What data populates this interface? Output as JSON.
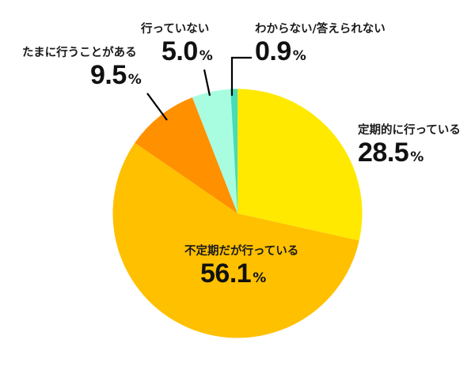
{
  "chart_data": {
    "type": "pie",
    "title": "",
    "start_angle_deg": 0,
    "direction": "clockwise",
    "categories": [
      "定期的に行っている",
      "不定期だが行っている",
      "たまに行うことがある",
      "行っていない",
      "わからない/答えられない"
    ],
    "values": [
      28.5,
      56.1,
      9.5,
      5.0,
      0.9
    ],
    "unit": "%",
    "colors": [
      "#FFE900",
      "#FFC000",
      "#FF9000",
      "#A8FDE1",
      "#45DDBA"
    ],
    "legend": "none (direct labels)"
  },
  "labels": [
    {
      "category": "定期的に行っている",
      "value": "28.5",
      "unit": "%"
    },
    {
      "category": "不定期だが行っている",
      "value": "56.1",
      "unit": "%"
    },
    {
      "category": "たまに行うことがある",
      "value": "9.5",
      "unit": "%"
    },
    {
      "category": "行っていない",
      "value": "5.0",
      "unit": "%"
    },
    {
      "category": "わからない/答えられない",
      "value": "0.9",
      "unit": "%"
    }
  ]
}
